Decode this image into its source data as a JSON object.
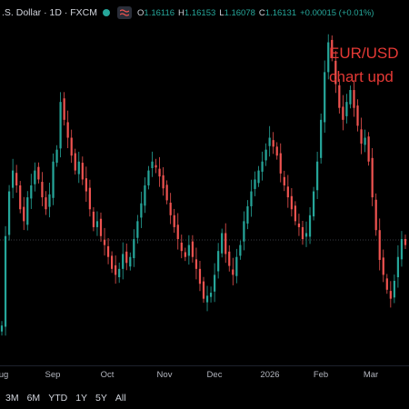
{
  "legend": {
    "symbol_title": ".S. Dollar · 1D · FXCM",
    "status_color": "#26a69a",
    "status_icon": "hide-indicators-icon",
    "open_key": "O",
    "open_val": "1.16116",
    "high_key": "H",
    "high_val": "1.16153",
    "low_key": "L",
    "low_val": "1.16078",
    "close_key": "C",
    "close_val": "1.16131",
    "change": "+0.00015 (+0.01%)",
    "up_color": "#26a69a"
  },
  "annotation": {
    "line1": "EUR/USD",
    "line2": "chart upd",
    "color": "#e53935"
  },
  "time_axis": {
    "labels": [
      "ug",
      "Sep",
      "Oct",
      "Nov",
      "Dec",
      "2026",
      "Feb",
      "Mar"
    ]
  },
  "toolbar": {
    "ranges": [
      "3M",
      "6M",
      "YTD",
      "1Y",
      "5Y",
      "All"
    ]
  },
  "colors": {
    "background": "#000000",
    "up": "#26a69a",
    "down": "#ef5350"
  },
  "chart_data": {
    "type": "candlestick",
    "title": "",
    "xlabel": "",
    "ylabel": "",
    "x_ticks": [
      "ug",
      "Sep",
      "Oct",
      "Nov",
      "Dec",
      "2026",
      "Feb",
      "Mar"
    ],
    "grid": false,
    "price_axis_visible": false,
    "reference_line": "dotted horizontal",
    "shape": "approximate daily closes in relative chart units (1 = range high, 0 = range low), price scale not shown",
    "closes": [
      0.03,
      0.33,
      0.48,
      0.55,
      0.5,
      0.42,
      0.38,
      0.46,
      0.5,
      0.55,
      0.52,
      0.46,
      0.42,
      0.47,
      0.58,
      0.62,
      0.78,
      0.72,
      0.66,
      0.6,
      0.55,
      0.58,
      0.52,
      0.48,
      0.42,
      0.36,
      0.38,
      0.33,
      0.3,
      0.26,
      0.22,
      0.2,
      0.22,
      0.27,
      0.24,
      0.26,
      0.32,
      0.38,
      0.44,
      0.5,
      0.55,
      0.58,
      0.56,
      0.53,
      0.49,
      0.45,
      0.4,
      0.36,
      0.32,
      0.28,
      0.26,
      0.3,
      0.26,
      0.22,
      0.17,
      0.12,
      0.13,
      0.14,
      0.2,
      0.28,
      0.34,
      0.27,
      0.23,
      0.2,
      0.26,
      0.3,
      0.38,
      0.43,
      0.48,
      0.52,
      0.55,
      0.58,
      0.62,
      0.66,
      0.63,
      0.6,
      0.54,
      0.5,
      0.46,
      0.42,
      0.38,
      0.36,
      0.32,
      0.34,
      0.4,
      0.48,
      0.58,
      0.72,
      0.88,
      0.98,
      0.93,
      0.84,
      0.76,
      0.72,
      0.78,
      0.82,
      0.76,
      0.7,
      0.64,
      0.66,
      0.58,
      0.46,
      0.35,
      0.25,
      0.2,
      0.15,
      0.12,
      0.18,
      0.26,
      0.32,
      0.3
    ]
  }
}
